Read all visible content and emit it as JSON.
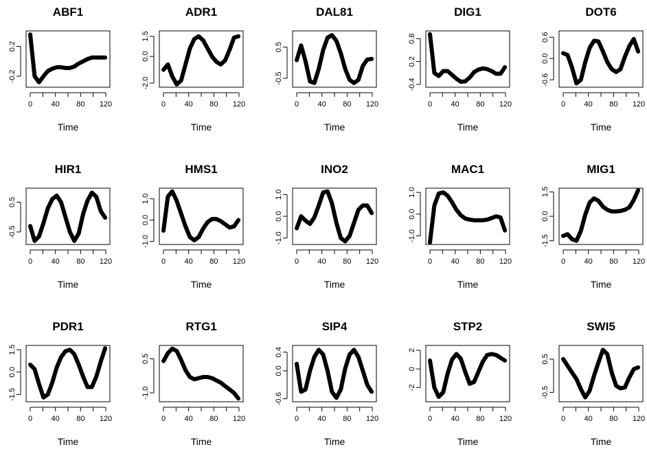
{
  "chart_data": [
    {
      "type": "line",
      "title": "ABF1",
      "xlabel": "Time",
      "ylabel": "",
      "xlim": [
        0,
        120
      ],
      "ylim": [
        -0.32,
        0.38
      ],
      "xticks": [
        0,
        40,
        80,
        120
      ],
      "yticks": [
        -0.2,
        0.2
      ],
      "ytick_labels": [
        "-0.2",
        "0.2"
      ],
      "x": [
        0,
        7,
        14,
        21,
        28,
        35,
        42,
        49,
        56,
        63,
        70,
        77,
        84,
        91,
        98,
        105,
        112,
        119
      ],
      "values": [
        0.36,
        -0.2,
        -0.28,
        -0.2,
        -0.13,
        -0.1,
        -0.08,
        -0.08,
        -0.09,
        -0.09,
        -0.07,
        -0.03,
        0.0,
        0.03,
        0.05,
        0.05,
        0.05,
        0.05
      ]
    },
    {
      "type": "line",
      "title": "ADR1",
      "xlabel": "Time",
      "ylabel": "",
      "xlim": [
        0,
        120
      ],
      "ylim": [
        -2.15,
        1.75
      ],
      "xticks": [
        0,
        40,
        80,
        120
      ],
      "yticks": [
        -2.0,
        0.0,
        1.5
      ],
      "ytick_labels": [
        "-2.0",
        "0.0",
        "1.5"
      ],
      "x": [
        0,
        7,
        14,
        21,
        28,
        35,
        42,
        49,
        56,
        63,
        70,
        77,
        84,
        91,
        98,
        105,
        112,
        119
      ],
      "values": [
        -1.0,
        -0.6,
        -1.5,
        -2.1,
        -1.8,
        -0.6,
        0.6,
        1.3,
        1.5,
        1.2,
        0.6,
        0.0,
        -0.4,
        -0.6,
        -0.3,
        0.5,
        1.4,
        1.5
      ]
    },
    {
      "type": "line",
      "title": "DAL81",
      "xlabel": "Time",
      "ylabel": "",
      "xlim": [
        0,
        120
      ],
      "ylim": [
        -0.72,
        0.95
      ],
      "xticks": [
        0,
        40,
        80,
        120
      ],
      "yticks": [
        -0.5,
        0.5
      ],
      "ytick_labels": [
        "-0.5",
        "0.5"
      ],
      "x": [
        0,
        7,
        14,
        21,
        28,
        35,
        42,
        49,
        56,
        63,
        70,
        77,
        84,
        91,
        98,
        105,
        112,
        119
      ],
      "values": [
        0.08,
        0.55,
        0.05,
        -0.6,
        -0.65,
        -0.2,
        0.4,
        0.8,
        0.88,
        0.7,
        0.3,
        -0.2,
        -0.55,
        -0.65,
        -0.55,
        -0.1,
        0.1,
        0.12
      ]
    },
    {
      "type": "line",
      "title": "DIG1",
      "xlabel": "Time",
      "ylabel": "",
      "xlim": [
        0,
        120
      ],
      "ylim": [
        -0.42,
        0.95
      ],
      "xticks": [
        0,
        40,
        80,
        120
      ],
      "yticks": [
        -0.4,
        0.2,
        0.8
      ],
      "ytick_labels": [
        "-0.4",
        "0.2",
        "0.8"
      ],
      "x": [
        0,
        7,
        14,
        21,
        28,
        35,
        42,
        49,
        56,
        63,
        70,
        77,
        84,
        91,
        98,
        105,
        112,
        119
      ],
      "values": [
        0.92,
        -0.1,
        -0.18,
        -0.05,
        -0.05,
        -0.15,
        -0.25,
        -0.33,
        -0.32,
        -0.22,
        -0.08,
        -0.01,
        0.02,
        0.0,
        -0.05,
        -0.12,
        -0.12,
        0.05
      ]
    },
    {
      "type": "line",
      "title": "DOT6",
      "xlabel": "Time",
      "ylabel": "",
      "xlim": [
        0,
        120
      ],
      "ylim": [
        -0.75,
        0.72
      ],
      "xticks": [
        0,
        40,
        80,
        120
      ],
      "yticks": [
        -0.6,
        0.0,
        0.6
      ],
      "ytick_labels": [
        "-0.6",
        "0.0",
        "0.6"
      ],
      "x": [
        0,
        7,
        14,
        21,
        28,
        35,
        42,
        49,
        56,
        63,
        70,
        77,
        84,
        91,
        98,
        105,
        112,
        119
      ],
      "values": [
        0.15,
        0.1,
        -0.25,
        -0.7,
        -0.6,
        -0.1,
        0.3,
        0.5,
        0.48,
        0.2,
        -0.1,
        -0.3,
        -0.38,
        -0.3,
        0.05,
        0.35,
        0.55,
        0.2
      ]
    },
    {
      "type": "line",
      "title": "HIR1",
      "xlabel": "Time",
      "ylabel": "",
      "xlim": [
        0,
        120
      ],
      "ylim": [
        -0.85,
        0.9
      ],
      "xticks": [
        0,
        40,
        80,
        120
      ],
      "yticks": [
        -0.5,
        0.5
      ],
      "ytick_labels": [
        "-0.5",
        "0.5"
      ],
      "x": [
        0,
        7,
        14,
        21,
        28,
        35,
        42,
        49,
        56,
        63,
        70,
        77,
        84,
        91,
        98,
        105,
        112,
        119
      ],
      "values": [
        -0.3,
        -0.8,
        -0.65,
        -0.2,
        0.3,
        0.6,
        0.72,
        0.5,
        0.0,
        -0.5,
        -0.8,
        -0.55,
        0.1,
        0.55,
        0.82,
        0.68,
        0.2,
        -0.02
      ]
    },
    {
      "type": "line",
      "title": "HMS1",
      "xlabel": "Time",
      "ylabel": "",
      "xlim": [
        0,
        120
      ],
      "ylim": [
        -1.05,
        1.4
      ],
      "xticks": [
        0,
        40,
        80,
        120
      ],
      "yticks": [
        -1.0,
        0.0,
        1.0
      ],
      "ytick_labels": [
        "-1.0",
        "0.0",
        "1.0"
      ],
      "x": [
        0,
        7,
        14,
        21,
        28,
        35,
        42,
        49,
        56,
        63,
        70,
        77,
        84,
        91,
        98,
        105,
        112,
        119
      ],
      "values": [
        -0.5,
        1.1,
        1.35,
        0.9,
        0.3,
        -0.3,
        -0.8,
        -0.95,
        -0.8,
        -0.4,
        -0.1,
        0.05,
        0.05,
        -0.05,
        -0.2,
        -0.35,
        -0.3,
        0.0
      ]
    },
    {
      "type": "line",
      "title": "INO2",
      "xlabel": "Time",
      "ylabel": "",
      "xlim": [
        0,
        120
      ],
      "ylim": [
        -1.2,
        1.2
      ],
      "xticks": [
        0,
        40,
        80,
        120
      ],
      "yticks": [
        -1.0,
        0.0,
        1.0
      ],
      "ytick_labels": [
        "-1.0",
        "0.0",
        "1.0"
      ],
      "x": [
        0,
        7,
        14,
        21,
        28,
        35,
        42,
        49,
        56,
        63,
        70,
        77,
        84,
        91,
        98,
        105,
        112,
        119
      ],
      "values": [
        -0.55,
        0.0,
        -0.2,
        -0.35,
        -0.05,
        0.5,
        1.1,
        1.15,
        0.6,
        -0.3,
        -1.0,
        -1.15,
        -0.9,
        -0.3,
        0.3,
        0.5,
        0.5,
        0.15
      ]
    },
    {
      "type": "line",
      "title": "MAC1",
      "xlabel": "Time",
      "ylabel": "",
      "xlim": [
        0,
        120
      ],
      "ylim": [
        -1.3,
        1.1
      ],
      "xticks": [
        0,
        40,
        80,
        120
      ],
      "yticks": [
        -1.0,
        0.0,
        1.0
      ],
      "ytick_labels": [
        "-1.0",
        "0.0",
        "1.0"
      ],
      "x": [
        0,
        7,
        14,
        21,
        28,
        35,
        42,
        49,
        56,
        63,
        70,
        77,
        84,
        91,
        98,
        105,
        112,
        119
      ],
      "values": [
        -1.3,
        0.4,
        0.95,
        1.0,
        0.85,
        0.55,
        0.2,
        -0.05,
        -0.2,
        -0.25,
        -0.28,
        -0.28,
        -0.28,
        -0.25,
        -0.18,
        -0.1,
        -0.15,
        -0.75
      ]
    },
    {
      "type": "line",
      "title": "MIG1",
      "xlabel": "Time",
      "ylabel": "",
      "xlim": [
        0,
        120
      ],
      "ylim": [
        -1.6,
        1.6
      ],
      "xticks": [
        0,
        40,
        80,
        120
      ],
      "yticks": [
        -1.5,
        0.0,
        1.5
      ],
      "ytick_labels": [
        "-1.5",
        "0.0",
        "1.5"
      ],
      "x": [
        0,
        7,
        14,
        21,
        28,
        35,
        42,
        49,
        56,
        63,
        70,
        77,
        84,
        91,
        98,
        105,
        112,
        119
      ],
      "values": [
        -1.2,
        -1.1,
        -1.4,
        -1.5,
        -0.9,
        0.1,
        0.85,
        1.1,
        0.95,
        0.6,
        0.4,
        0.3,
        0.3,
        0.33,
        0.4,
        0.55,
        1.0,
        1.6
      ]
    },
    {
      "type": "line",
      "title": "PDR1",
      "xlabel": "Time",
      "ylabel": "",
      "xlim": [
        0,
        120
      ],
      "ylim": [
        -1.85,
        1.65
      ],
      "xticks": [
        0,
        40,
        80,
        120
      ],
      "yticks": [
        -1.5,
        0.0,
        1.5
      ],
      "ytick_labels": [
        "-1.5",
        "0.0",
        "1.5"
      ],
      "x": [
        0,
        7,
        14,
        21,
        28,
        35,
        42,
        49,
        56,
        63,
        70,
        77,
        84,
        91,
        98,
        105,
        112,
        119
      ],
      "values": [
        0.5,
        0.2,
        -0.8,
        -1.7,
        -1.5,
        -0.7,
        0.3,
        1.0,
        1.4,
        1.5,
        1.2,
        0.5,
        -0.3,
        -1.0,
        -1.0,
        -0.3,
        0.7,
        1.6
      ]
    },
    {
      "type": "line",
      "title": "RTG1",
      "xlabel": "Time",
      "ylabel": "",
      "xlim": [
        0,
        120
      ],
      "ylim": [
        -1.3,
        1.0
      ],
      "xticks": [
        0,
        40,
        80,
        120
      ],
      "yticks": [
        -1.0,
        0.5
      ],
      "ytick_labels": [
        "-1.0",
        "0.5"
      ],
      "x": [
        0,
        7,
        14,
        21,
        28,
        35,
        42,
        49,
        56,
        63,
        70,
        77,
        84,
        91,
        98,
        105,
        112,
        119
      ],
      "values": [
        0.4,
        0.75,
        0.95,
        0.85,
        0.45,
        0.0,
        -0.3,
        -0.4,
        -0.35,
        -0.3,
        -0.3,
        -0.35,
        -0.45,
        -0.55,
        -0.7,
        -0.85,
        -1.0,
        -1.25
      ]
    },
    {
      "type": "line",
      "title": "SIP4",
      "xlabel": "Time",
      "ylabel": "",
      "xlim": [
        0,
        120
      ],
      "ylim": [
        -0.62,
        0.5
      ],
      "xticks": [
        0,
        40,
        80,
        120
      ],
      "yticks": [
        -0.6,
        0.0,
        0.4
      ],
      "ytick_labels": [
        "-0.6",
        "0.0",
        "0.4"
      ],
      "x": [
        0,
        7,
        14,
        21,
        28,
        35,
        42,
        49,
        56,
        63,
        70,
        77,
        84,
        91,
        98,
        105,
        112,
        119
      ],
      "values": [
        0.15,
        -0.45,
        -0.4,
        0.0,
        0.3,
        0.45,
        0.35,
        0.0,
        -0.45,
        -0.58,
        -0.4,
        0.05,
        0.35,
        0.45,
        0.3,
        0.0,
        -0.3,
        -0.45
      ]
    },
    {
      "type": "line",
      "title": "STP2",
      "xlabel": "Time",
      "ylabel": "",
      "xlim": [
        0,
        120
      ],
      "ylim": [
        -3.3,
        2.3
      ],
      "xticks": [
        0,
        40,
        80,
        120
      ],
      "yticks": [
        -2,
        0,
        2
      ],
      "ytick_labels": [
        "-2",
        "0",
        "2"
      ],
      "x": [
        0,
        7,
        14,
        21,
        28,
        35,
        42,
        49,
        56,
        63,
        70,
        77,
        84,
        91,
        98,
        105,
        112,
        119
      ],
      "values": [
        0.9,
        -2.0,
        -3.0,
        -2.5,
        -0.5,
        1.0,
        1.6,
        1.1,
        -0.3,
        -1.6,
        -1.4,
        -0.3,
        0.8,
        1.5,
        1.6,
        1.5,
        1.2,
        0.9
      ]
    },
    {
      "type": "line",
      "title": "SWI5",
      "xlabel": "Time",
      "ylabel": "",
      "xlim": [
        0,
        120
      ],
      "ylim": [
        -0.72,
        0.85
      ],
      "xticks": [
        0,
        40,
        80,
        120
      ],
      "yticks": [
        -0.5,
        0.5
      ],
      "ytick_labels": [
        "-0.5",
        "0.5"
      ],
      "x": [
        0,
        7,
        14,
        21,
        28,
        35,
        42,
        49,
        56,
        63,
        70,
        77,
        84,
        91,
        98,
        105,
        112,
        119
      ],
      "values": [
        0.5,
        0.3,
        0.1,
        -0.1,
        -0.4,
        -0.65,
        -0.45,
        0.0,
        0.4,
        0.78,
        0.65,
        0.1,
        -0.3,
        -0.38,
        -0.35,
        -0.05,
        0.2,
        0.25
      ]
    }
  ]
}
